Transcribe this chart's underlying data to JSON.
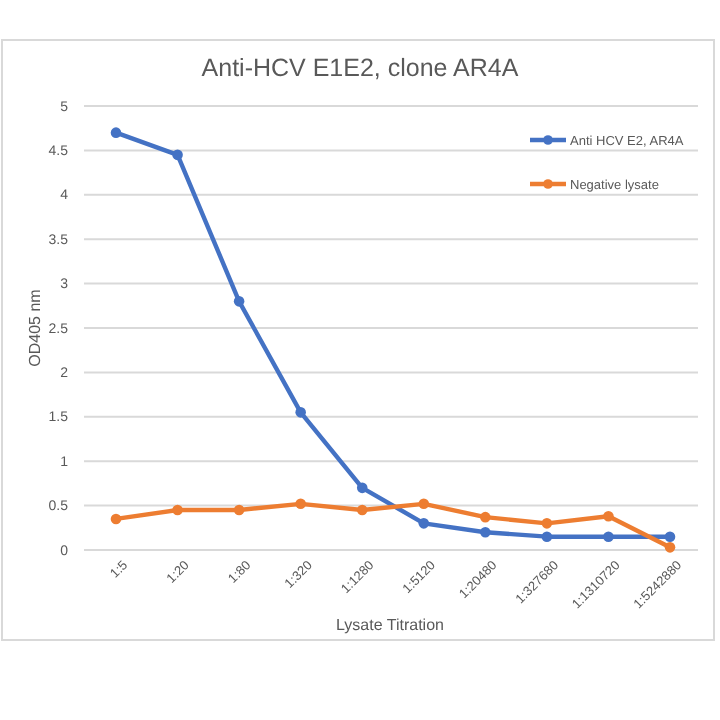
{
  "chart_data": {
    "type": "line",
    "title": "Anti-HCV E1E2, clone AR4A",
    "xlabel": "Lysate Titration",
    "ylabel": "OD405 nm",
    "categories": [
      "1:5",
      "1:20",
      "1:80",
      "1:320",
      "1:1280",
      "1:5120",
      "1:20480",
      "1:327680",
      "1:1310720",
      "1:5242880"
    ],
    "series": [
      {
        "name": "Anti HCV E2, AR4A",
        "color": "#4472c4",
        "values": [
          4.7,
          4.45,
          2.8,
          1.55,
          0.7,
          0.3,
          0.2,
          0.15,
          0.15,
          0.15
        ]
      },
      {
        "name": "Negative lysate",
        "color": "#ed7d31",
        "values": [
          0.35,
          0.45,
          0.45,
          0.52,
          0.45,
          0.52,
          0.37,
          0.3,
          0.38,
          0.03
        ]
      }
    ],
    "ylim": [
      0,
      5
    ],
    "yticks": [
      0,
      0.5,
      1,
      1.5,
      2,
      2.5,
      3,
      3.5,
      4,
      4.5,
      5
    ],
    "grid": "y",
    "legend": "top right",
    "marker": "circle",
    "line_style": "solid"
  }
}
